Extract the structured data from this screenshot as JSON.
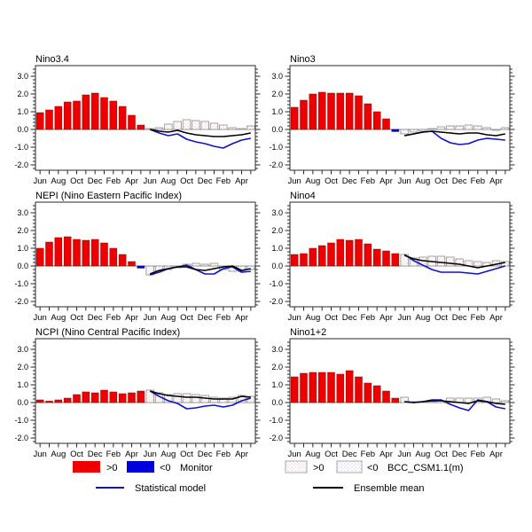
{
  "figure": {
    "background": "#ffffff"
  },
  "colors": {
    "monitor_pos": "#ee0000",
    "monitor_pos_edge": "#990000",
    "monitor_neg": "#0000dd",
    "monitor_neg_edge": "#000066",
    "forecast_stroke": "#999999",
    "forecast_dot_pos": "#e8a8a8",
    "forecast_dot_neg": "#a8b4e8",
    "stat_line": "#1111cc",
    "ens_line": "#000000",
    "axis": "#2a2a2a",
    "zero_line": "#777777",
    "text": "#000000"
  },
  "axis": {
    "yticks": [
      3.0,
      2.0,
      1.0,
      0.0,
      -1.0,
      -2.0
    ],
    "ytick_labels": [
      "3.0",
      "2.0",
      "1.0",
      "0.0",
      "-1.0",
      "-2.0"
    ],
    "ylim": [
      -2.3,
      3.6
    ],
    "minor_step": 0.2,
    "xtick_labels": [
      "Jun",
      "Aug",
      "Oct",
      "Dec",
      "Feb",
      "Apr",
      "Jun",
      "Aug",
      "Oct",
      "Dec",
      "Feb",
      "Apr"
    ],
    "months_total": 24,
    "grid": false
  },
  "chart_data": [
    {
      "type": "bar+line",
      "title": "Nino3.4",
      "series": {
        "monitor": [
          0.95,
          1.1,
          1.3,
          1.55,
          1.6,
          1.95,
          2.05,
          1.8,
          1.6,
          1.3,
          0.8,
          0.25
        ],
        "bcc_csm": [
          0.05,
          0.1,
          0.3,
          0.45,
          0.55,
          0.5,
          0.45,
          0.35,
          0.25,
          0.1,
          0.05,
          0.2
        ],
        "statistical_model": [
          0.0,
          -0.2,
          -0.35,
          -0.25,
          -0.55,
          -0.7,
          -0.8,
          -0.95,
          -1.05,
          -0.8,
          -0.6,
          -0.5
        ],
        "ensemble_mean": [
          0.0,
          -0.1,
          -0.15,
          -0.05,
          -0.2,
          -0.3,
          -0.35,
          -0.4,
          -0.4,
          -0.35,
          -0.3,
          -0.2
        ]
      }
    },
    {
      "type": "bar+line",
      "title": "Nino3",
      "series": {
        "monitor": [
          1.25,
          1.65,
          2.0,
          2.1,
          2.05,
          2.05,
          2.05,
          1.9,
          1.45,
          1.0,
          0.6,
          -0.12
        ],
        "bcc_csm": [
          -0.25,
          -0.15,
          -0.1,
          0.05,
          0.15,
          0.2,
          0.2,
          0.25,
          0.2,
          0.1,
          -0.05,
          0.1
        ],
        "statistical_model": [
          -0.35,
          -0.25,
          -0.15,
          -0.1,
          -0.5,
          -0.75,
          -0.85,
          -0.8,
          -0.6,
          -0.5,
          -0.55,
          -0.6
        ],
        "ensemble_mean": [
          -0.35,
          -0.25,
          -0.15,
          -0.1,
          -0.15,
          -0.2,
          -0.25,
          -0.2,
          -0.2,
          -0.3,
          -0.35,
          -0.25
        ]
      }
    },
    {
      "type": "bar+line",
      "title": "NEPI (Nino Eastern Pacific Index)",
      "series": {
        "monitor": [
          1.0,
          1.35,
          1.6,
          1.65,
          1.5,
          1.45,
          1.5,
          1.3,
          1.0,
          0.65,
          0.25,
          -0.12
        ],
        "bcc_csm": [
          -0.5,
          -0.3,
          -0.2,
          -0.1,
          0.1,
          0.15,
          0.1,
          0.15,
          -0.2,
          -0.3,
          -0.3,
          -0.2
        ],
        "statistical_model": [
          -0.5,
          -0.35,
          -0.15,
          -0.05,
          0.05,
          -0.2,
          -0.45,
          -0.45,
          -0.15,
          -0.05,
          -0.35,
          -0.3
        ],
        "ensemble_mean": [
          -0.45,
          -0.25,
          -0.15,
          -0.05,
          -0.05,
          -0.2,
          -0.25,
          -0.15,
          -0.05,
          0.0,
          -0.25,
          -0.15
        ]
      }
    },
    {
      "type": "bar+line",
      "title": "Nino4",
      "series": {
        "monitor": [
          0.65,
          0.7,
          1.0,
          1.15,
          1.3,
          1.5,
          1.45,
          1.5,
          1.25,
          0.95,
          0.85,
          0.7
        ],
        "bcc_csm": [
          0.65,
          0.45,
          0.5,
          0.55,
          0.55,
          0.5,
          0.4,
          0.3,
          0.25,
          0.2,
          0.3,
          0.25
        ],
        "statistical_model": [
          0.65,
          0.3,
          0.05,
          -0.2,
          -0.35,
          -0.35,
          -0.35,
          -0.4,
          -0.45,
          -0.3,
          -0.15,
          0.0
        ],
        "ensemble_mean": [
          0.6,
          0.4,
          0.3,
          0.25,
          0.2,
          0.15,
          0.1,
          0.0,
          -0.1,
          0.0,
          0.1,
          0.2
        ]
      }
    },
    {
      "type": "bar+line",
      "title": "NCPI (Nino Central Pacific Index)",
      "series": {
        "monitor": [
          0.15,
          0.08,
          0.15,
          0.25,
          0.45,
          0.6,
          0.55,
          0.7,
          0.6,
          0.5,
          0.55,
          0.65
        ],
        "bcc_csm": [
          0.7,
          0.55,
          0.45,
          0.5,
          0.5,
          0.45,
          0.4,
          0.3,
          0.25,
          0.3,
          0.4,
          0.35
        ],
        "statistical_model": [
          0.65,
          0.35,
          0.1,
          -0.05,
          -0.35,
          -0.3,
          -0.2,
          -0.15,
          -0.25,
          -0.15,
          0.1,
          0.25
        ],
        "ensemble_mean": [
          0.65,
          0.5,
          0.4,
          0.35,
          0.3,
          0.3,
          0.25,
          0.2,
          0.2,
          0.2,
          0.35,
          0.3
        ]
      }
    },
    {
      "type": "bar+line",
      "title": "Nino1+2",
      "series": {
        "monitor": [
          1.45,
          1.65,
          1.7,
          1.7,
          1.7,
          1.6,
          1.8,
          1.45,
          1.1,
          0.95,
          0.65,
          0.25
        ],
        "bcc_csm": [
          0.3,
          0.05,
          0.05,
          0.05,
          0.1,
          0.25,
          0.25,
          0.25,
          0.25,
          0.3,
          0.2,
          0.1
        ],
        "statistical_model": [
          0.05,
          0.0,
          0.05,
          0.15,
          0.15,
          -0.1,
          -0.3,
          -0.45,
          0.15,
          0.05,
          -0.25,
          -0.35
        ],
        "ensemble_mean": [
          0.05,
          0.0,
          0.05,
          0.1,
          0.1,
          0.05,
          0.0,
          -0.05,
          0.1,
          0.05,
          -0.05,
          -0.1
        ]
      }
    }
  ],
  "legend": {
    "monitor": {
      "pos": ">0",
      "neg": "<0",
      "label": "Monitor"
    },
    "bcc": {
      "pos": ">0",
      "neg": "<0",
      "label": "BCC_CSM1.1(m)"
    },
    "statistical_model": "Statistical model",
    "ensemble_mean": "Ensemble mean"
  }
}
